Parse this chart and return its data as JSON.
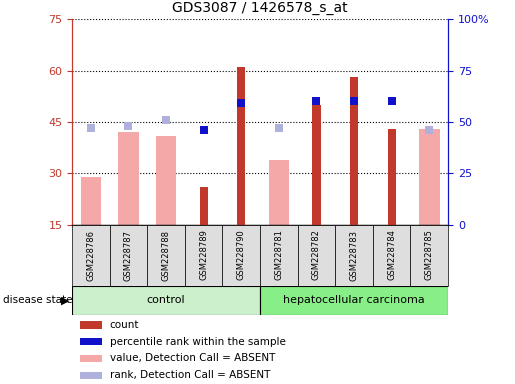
{
  "title": "GDS3087 / 1426578_s_at",
  "samples": [
    "GSM228786",
    "GSM228787",
    "GSM228788",
    "GSM228789",
    "GSM228790",
    "GSM228781",
    "GSM228782",
    "GSM228783",
    "GSM228784",
    "GSM228785"
  ],
  "count_red": [
    null,
    null,
    null,
    26,
    61,
    null,
    50,
    58,
    43,
    null
  ],
  "value_absent_pink": [
    29,
    42,
    41,
    null,
    null,
    34,
    null,
    null,
    null,
    43
  ],
  "rank_percentile_blue": [
    null,
    null,
    null,
    46,
    59,
    null,
    60,
    60,
    60,
    null
  ],
  "rank_absent_lavender": [
    47,
    48,
    51,
    null,
    null,
    47,
    null,
    null,
    null,
    46
  ],
  "ylim_left": [
    15,
    75
  ],
  "ylim_right": [
    0,
    100
  ],
  "yticks_left": [
    15,
    30,
    45,
    60,
    75
  ],
  "yticks_right": [
    0,
    25,
    50,
    75,
    100
  ],
  "ytick_labels_right": [
    "0",
    "25",
    "50",
    "75",
    "100%"
  ],
  "color_red": "#c0392b",
  "color_pink": "#f4a9a8",
  "color_blue": "#1111cc",
  "color_lavender": "#b0b0dd",
  "color_control_bg": "#ccf0cc",
  "color_carcinoma_bg": "#88ee88",
  "color_sample_bg": "#dedede",
  "pink_bar_width": 0.55,
  "red_bar_width": 0.22,
  "legend_items": [
    {
      "label": "count",
      "color": "#c0392b"
    },
    {
      "label": "percentile rank within the sample",
      "color": "#1111cc"
    },
    {
      "label": "value, Detection Call = ABSENT",
      "color": "#f4a9a8"
    },
    {
      "label": "rank, Detection Call = ABSENT",
      "color": "#b0b0dd"
    }
  ]
}
